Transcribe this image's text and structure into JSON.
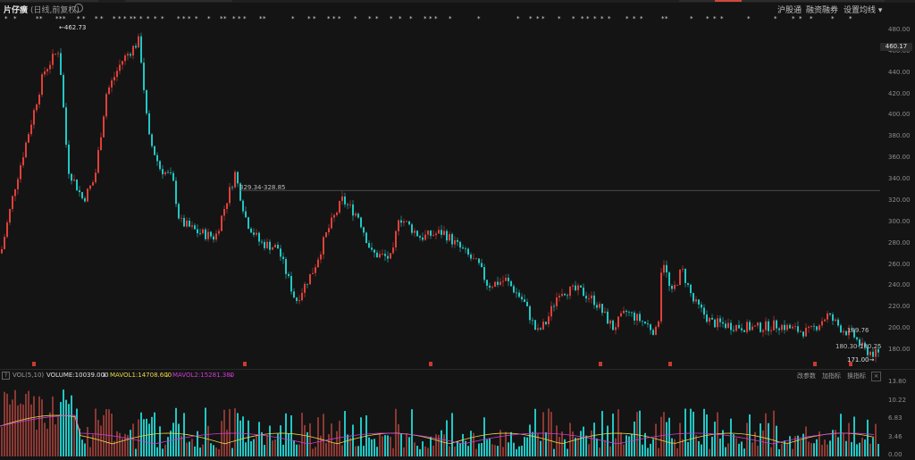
{
  "header": {
    "title": "片仔癀",
    "subtitle": "(日线,前复权)",
    "links": [
      "沪股通",
      "融资融券",
      "设置均线 ▾"
    ]
  },
  "price_axis": {
    "ticks": [
      "480.00",
      "460.00",
      "440.00",
      "420.00",
      "400.00",
      "380.00",
      "360.00",
      "340.00",
      "320.00",
      "300.00",
      "280.00",
      "260.00",
      "240.00",
      "220.00",
      "200.00",
      "180.00"
    ],
    "current": "460.17"
  },
  "annotations": {
    "high": "462.73",
    "range1": "329.34-328.85",
    "range2": "189.76",
    "range3": "180.30-180.25",
    "low": "171.00"
  },
  "volume": {
    "name": "VOL(5,10)",
    "volume_label": "VOLUME:10039.000",
    "mavol1": "MAVOL1:14708.600",
    "mavol2": "MAVOL2:15281.380",
    "buttons": [
      "改参数",
      "加指标",
      "换指标"
    ],
    "close": "×",
    "help": "?",
    "ticks": [
      "13.80",
      "10.22",
      "6.83",
      "3.46",
      "0.00"
    ]
  },
  "colors": {
    "up": "#e0403a",
    "down": "#21c7c4",
    "mavol1": "#e8d64a",
    "mavol2": "#d03ad6",
    "background": "#141414"
  }
}
